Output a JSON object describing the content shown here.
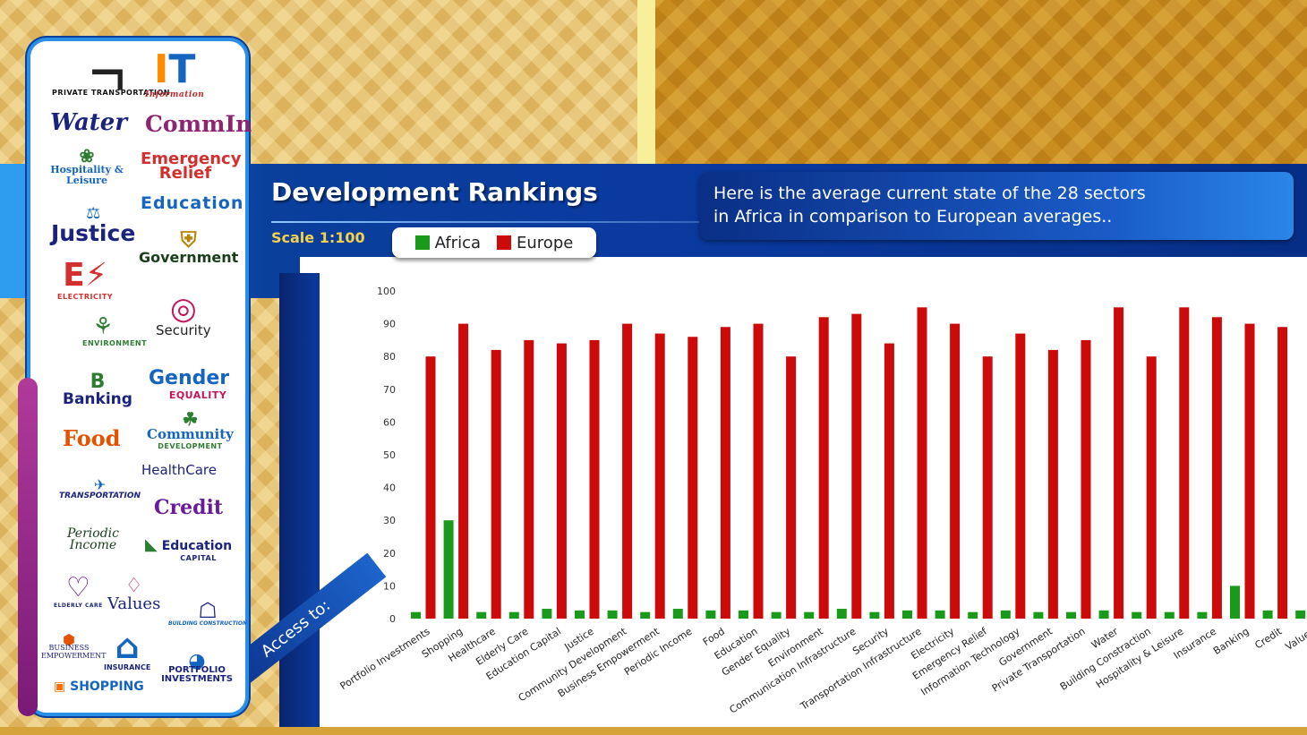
{
  "header": {
    "title": "Development Rankings",
    "scale": "Scale 1:100",
    "intro_line1": "Here is the average current state of the 28 sectors",
    "intro_line2": "in Africa in comparison to European averages.."
  },
  "access_label": "Access to:",
  "sidebar": {
    "logos": [
      {
        "text": "PRIVATE TRANSPORTATION"
      },
      {
        "text": "Information"
      },
      {
        "text": "Water"
      },
      {
        "text": "CommIn"
      },
      {
        "text": "Hospitality & Leisure"
      },
      {
        "text": "Emergency Relief"
      },
      {
        "text": "Education"
      },
      {
        "text": "Justice"
      },
      {
        "text": "Government"
      },
      {
        "text": "ELECTRICITY"
      },
      {
        "text": "Security"
      },
      {
        "text": "ENVIRONMENT"
      },
      {
        "text": "Banking"
      },
      {
        "text": "Gender"
      },
      {
        "text": "EQUALITY"
      },
      {
        "text": "Food"
      },
      {
        "text": "Community"
      },
      {
        "text": "DEVELOPMENT"
      },
      {
        "text": "HealthCare"
      },
      {
        "text": "TRANSPORTATION"
      },
      {
        "text": "Credit"
      },
      {
        "text": "Periodic Income"
      },
      {
        "text": "Education"
      },
      {
        "text": "CAPITAL"
      },
      {
        "text": "ELDERLY CARE"
      },
      {
        "text": "Values"
      },
      {
        "text": "BUILDING CONSTRUCTION"
      },
      {
        "text": "INSURANCE"
      },
      {
        "text": "BUSINESS EMPOWERMENT"
      },
      {
        "text": "SHOPPING"
      },
      {
        "text": "PORTFOLIO INVESTMENTS"
      }
    ]
  },
  "colors": {
    "africa": "#1a9a1a",
    "europe": "#cc0a0a"
  },
  "chart_data": {
    "type": "bar",
    "legend_position": "top",
    "grid": false,
    "ylim": [
      0,
      100
    ],
    "yticks": [
      "0",
      "10",
      "20",
      "30",
      "40",
      "50",
      "60",
      "70",
      "80",
      "90",
      "100"
    ],
    "categories": [
      "Portfolio Investments",
      "Shopping",
      "Healthcare",
      "Elderly Care",
      "Education Capital",
      "Justice",
      "Community Development",
      "Business Empowerment",
      "Periodic Income",
      "Food",
      "Education",
      "Gender Equality",
      "Environment",
      "Communication Infrastructure",
      "Security",
      "Transportation Infrastructure",
      "Electricity",
      "Emergency Relief",
      "Information Technology",
      "Government",
      "Private Transportation",
      "Water",
      "Building Constraction",
      "Hospitality & Leisure",
      "Insurance",
      "Banking",
      "Credit",
      "Values"
    ],
    "series": [
      {
        "name": "Africa",
        "values": [
          2,
          30,
          2,
          2,
          3,
          2.5,
          2.5,
          2,
          3,
          2.5,
          2.5,
          2,
          2,
          3,
          2,
          2.5,
          2.5,
          2,
          2.5,
          2,
          2,
          2.5,
          2,
          2,
          2,
          10,
          2.5,
          2.5
        ]
      },
      {
        "name": "Europe",
        "values": [
          80,
          90,
          82,
          85,
          84,
          85,
          90,
          87,
          86,
          89,
          90,
          80,
          92,
          93,
          84,
          95,
          90,
          80,
          87,
          82,
          85,
          95,
          80,
          95,
          92,
          90,
          89,
          null
        ]
      }
    ]
  }
}
